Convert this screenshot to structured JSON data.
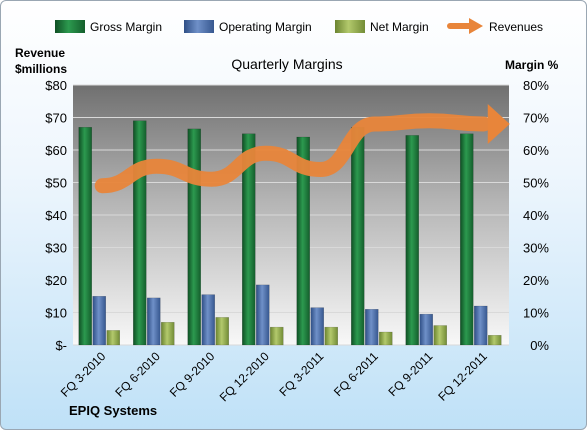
{
  "chart_data": {
    "type": "bar",
    "title": "Quarterly Margins",
    "company": "EPIQ Systems",
    "left_axis": {
      "label_line1": "Revenue",
      "label_line2": "$millions",
      "ticks": [
        "$-",
        "$10",
        "$20",
        "$30",
        "$40",
        "$50",
        "$60",
        "$70",
        "$80"
      ],
      "ylim": [
        0,
        80
      ]
    },
    "right_axis": {
      "label": "Margin %",
      "ticks": [
        "0%",
        "10%",
        "20%",
        "30%",
        "40%",
        "50%",
        "60%",
        "70%",
        "80%"
      ],
      "ylim": [
        0,
        80
      ]
    },
    "categories": [
      "FQ 3-2010",
      "FQ 6-2010",
      "FQ 9-2010",
      "FQ 12-2010",
      "FQ 3-2011",
      "FQ 6-2011",
      "FQ 9-2011",
      "FQ 12-2011"
    ],
    "series": [
      {
        "name": "Gross Margin",
        "type": "bar",
        "axis": "right",
        "color": "#1e7b3e",
        "values": [
          67,
          69,
          66.5,
          65,
          64,
          67,
          64.5,
          65
        ]
      },
      {
        "name": "Operating Margin",
        "type": "bar",
        "axis": "right",
        "color": "#4d6fa8",
        "values": [
          15,
          14.5,
          15.5,
          18.5,
          11.5,
          11,
          9.5,
          12
        ]
      },
      {
        "name": "Net Margin",
        "type": "bar",
        "axis": "right",
        "color": "#8fa84a",
        "values": [
          4.5,
          7,
          8.5,
          5.5,
          5.5,
          4,
          6,
          3
        ]
      },
      {
        "name": "Revenues",
        "type": "line",
        "axis": "left",
        "color": "#e8853a",
        "values": [
          49,
          55,
          51,
          59,
          54,
          68,
          69,
          68
        ]
      }
    ],
    "legend_position": "top",
    "grid": true
  }
}
